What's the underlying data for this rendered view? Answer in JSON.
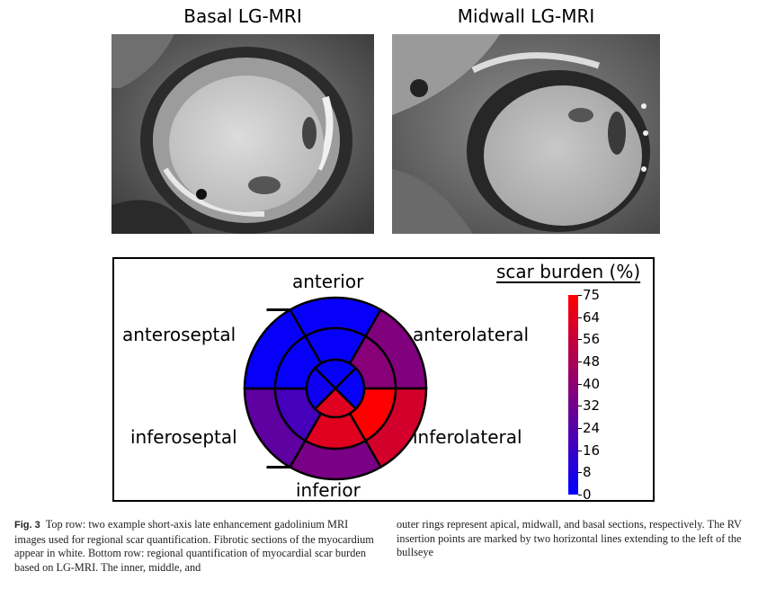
{
  "figure": {
    "titles": {
      "basal": "Basal LG-MRI",
      "midwall": "Midwall LG-MRI"
    },
    "bullseye": {
      "labels": {
        "anterior": "anterior",
        "anteroseptal": "anteroseptal",
        "anterolateral": "anterolateral",
        "inferoseptal": "inferoseptal",
        "inferolateral": "inferolateral",
        "inferior": "inferior"
      },
      "ring_values": {
        "outer": {
          "anterior": 2,
          "anterolateral": 38,
          "inferolateral": 62,
          "inferior": 36,
          "inferoseptal": 28,
          "anteroseptal": 2
        },
        "middle": {
          "anterior": 2,
          "anterolateral": 40,
          "inferolateral": 75,
          "inferior": 66,
          "inferoseptal": 20,
          "anteroseptal": 2
        },
        "inner": {
          "anterior": 2,
          "lateral": 2,
          "inferior": 66,
          "septal": 4
        }
      }
    },
    "colorbar": {
      "title": "scar burden (%)",
      "min_color": "#0000ff",
      "max_color": "#ff0000",
      "ticks": [
        "75",
        "64",
        "56",
        "48",
        "40",
        "32",
        "24",
        "16",
        "8",
        "0"
      ]
    }
  },
  "caption": {
    "label": "Fig. 3",
    "left": "Top row: two example short-axis late enhancement gadolinium MRI images used for regional scar quantification. Fibrotic sections of the myocardium appear in white. Bottom row: regional quantification of myocardial scar burden based on LG-MRI. The inner, middle, and",
    "right": "outer rings represent apical, midwall, and basal sections, respectively. The RV insertion points are marked by two horizontal lines extending to the left of the bullseye"
  }
}
